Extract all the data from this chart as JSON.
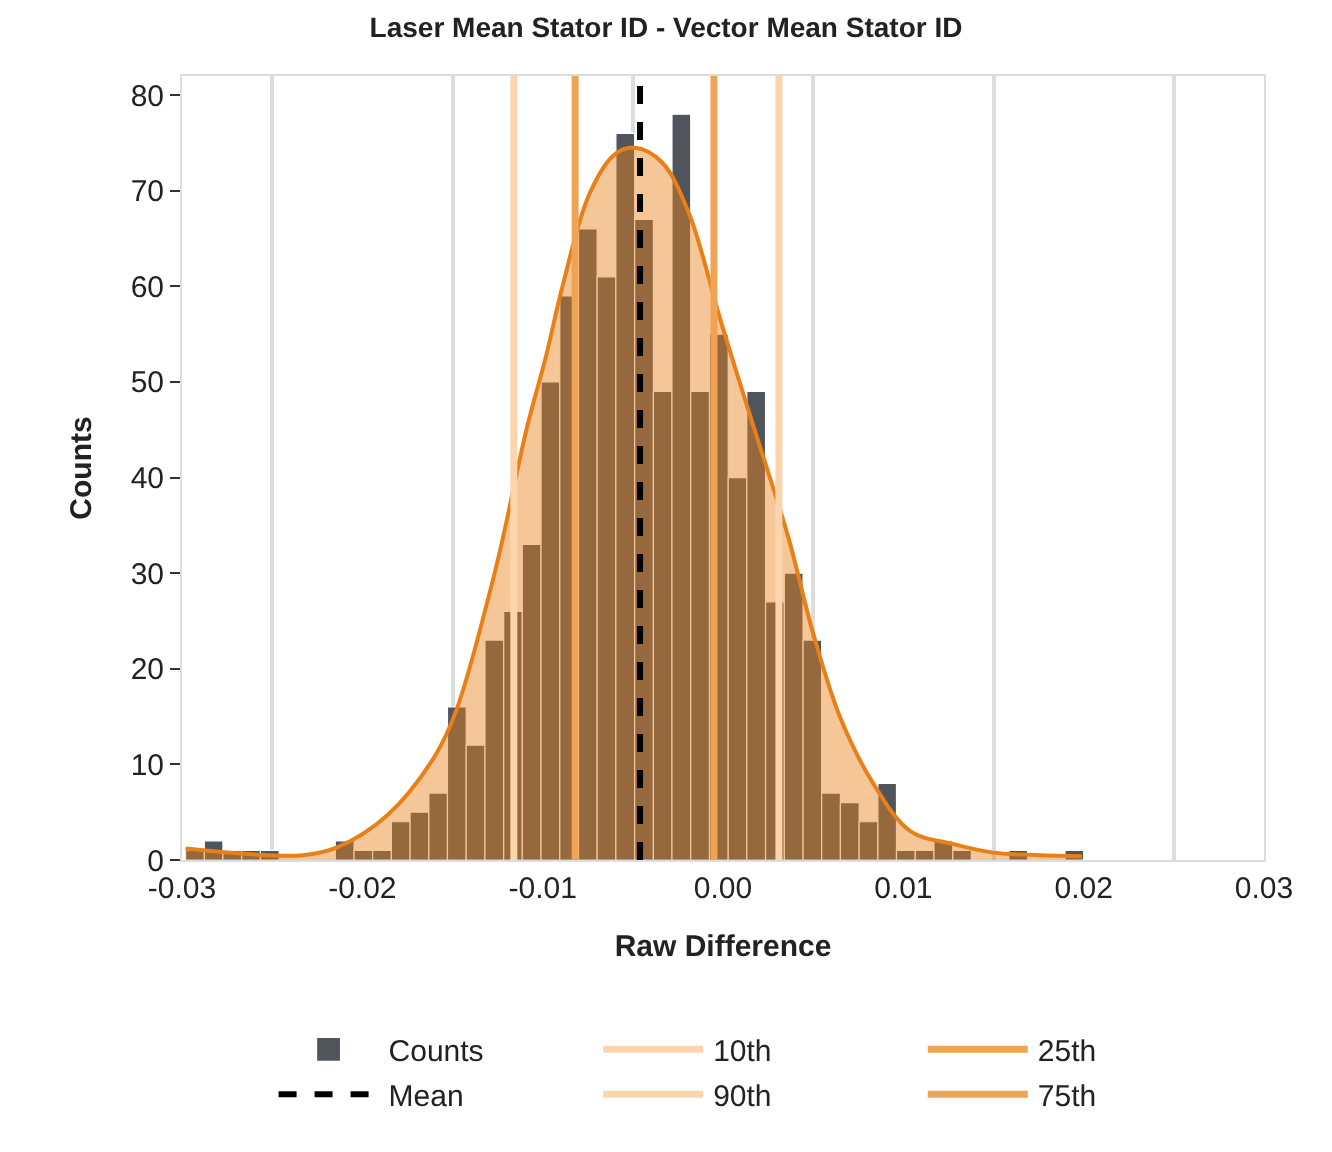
{
  "chart_data": {
    "type": "histogram",
    "title": "Laser Mean Stator ID - Vector Mean Stator ID",
    "xlabel": "Raw Difference",
    "ylabel": "Counts",
    "series": [
      {
        "name": "Counts",
        "color": "#50555c",
        "bins": [
          -0.0298,
          -0.02876,
          -0.02773,
          -0.02669,
          -0.02565,
          -0.02461,
          -0.02358,
          -0.02254,
          -0.0215,
          -0.02046,
          -0.01943,
          -0.01839,
          -0.01735,
          -0.01631,
          -0.01528,
          -0.01424,
          -0.0132,
          -0.01216,
          -0.01113,
          -0.01009,
          -0.00905,
          -0.00801,
          -0.00698,
          -0.00594,
          -0.0049,
          -0.00386,
          -0.00283,
          -0.00179,
          -0.00075,
          0.00029,
          0.00132,
          0.00236,
          0.0034,
          0.00444,
          0.00547,
          0.00651,
          0.00755,
          0.00859,
          0.00962,
          0.01066,
          0.0117,
          0.01274,
          0.01377,
          0.01481,
          0.01585,
          0.01689,
          0.01792,
          0.01896,
          0.02
        ],
        "values": [
          1,
          2,
          1,
          1,
          1,
          0,
          0,
          0,
          2,
          1,
          1,
          4,
          5,
          7,
          16,
          12,
          23,
          26,
          33,
          50,
          59,
          66,
          61,
          76,
          67,
          49,
          78,
          49,
          55,
          40,
          49,
          27,
          30,
          23,
          7,
          6,
          4,
          8,
          1,
          1,
          2,
          1,
          0,
          0,
          1,
          0,
          0,
          1
        ]
      },
      {
        "type": "area",
        "color": "#e8801a",
        "x": [
          -0.0298,
          -0.0233,
          -0.0213,
          -0.0186,
          -0.016,
          -0.0148,
          -0.0126,
          -0.0109,
          -0.0098,
          -0.0089,
          -0.0074,
          -0.006,
          -0.0049,
          -0.0034,
          -0.0019,
          -0.0001,
          0.0017,
          0.0036,
          0.005,
          0.0065,
          0.0083,
          0.0104,
          0.0127,
          0.0149,
          0.0175,
          0.0199
        ],
        "values": [
          1.2,
          0.5,
          1.4,
          4.7,
          10.8,
          15.6,
          30.5,
          45,
          52.8,
          60,
          69.7,
          73.8,
          74.5,
          73,
          67.7,
          56.2,
          45.3,
          33.9,
          23.7,
          14.9,
          8.1,
          3,
          1.7,
          0.8,
          0.5,
          0.4
        ]
      }
    ],
    "ref_lines": [
      {
        "axis": "x",
        "value": -0.0116,
        "label": "10th",
        "color": "#fdd5ac",
        "line_style": "solid"
      },
      {
        "axis": "x",
        "value": -0.0082,
        "label": "25th",
        "color": "#f0a453",
        "line_style": "solid"
      },
      {
        "axis": "x",
        "value": -0.0046,
        "label": "Mean",
        "color": "#000000",
        "line_style": "dashed"
      },
      {
        "axis": "x",
        "value": 0.0031,
        "label": "90th",
        "color": "#fdd5ac",
        "line_style": "solid"
      },
      {
        "axis": "x",
        "value": -0.0005,
        "label": "75th",
        "color": "#f0a453",
        "line_style": "solid"
      }
    ],
    "xlim": [
      -0.03,
      0.03
    ],
    "xticks": [
      -0.03,
      {
        "value": -0.025,
        "label": null
      },
      -0.02,
      {
        "value": -0.015,
        "label": null
      },
      -0.01,
      {
        "value": -0.005,
        "label": null
      },
      {
        "value": 0,
        "label": "0.00"
      },
      {
        "value": 0.005,
        "label": null
      },
      0.01,
      {
        "value": 0.015,
        "label": null
      },
      0.02,
      {
        "value": 0.025,
        "label": null
      },
      0.03
    ],
    "ylim": [
      0,
      82
    ],
    "yticks": [
      0,
      10,
      20,
      30,
      40,
      50,
      60,
      70,
      80
    ],
    "grid": "x",
    "legend": "bottom"
  }
}
